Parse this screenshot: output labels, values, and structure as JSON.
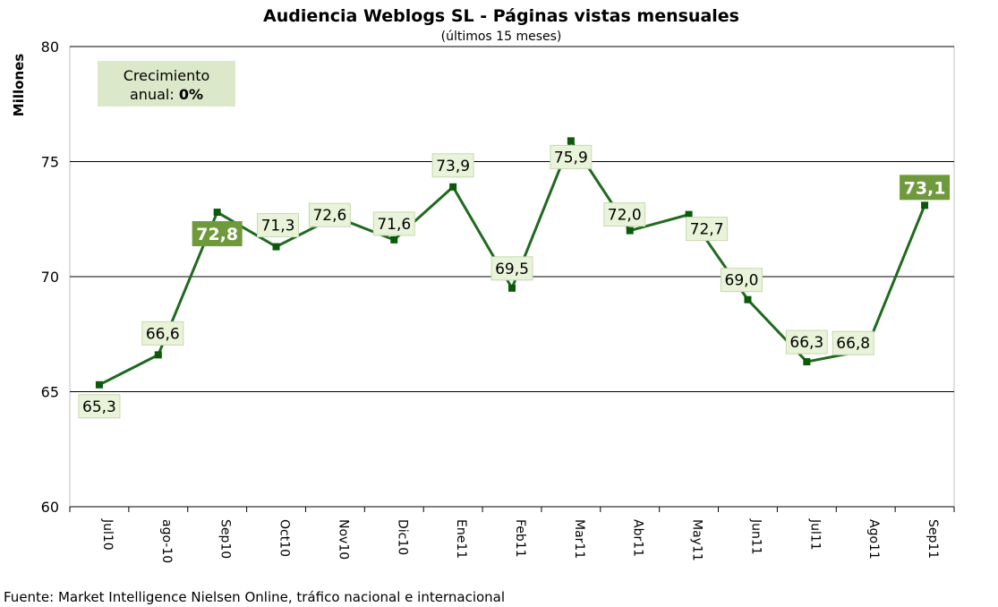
{
  "colors": {
    "line": "#1f6a1f",
    "marker": "#0b5a0b",
    "label_bg": "#e9f3d9",
    "label_border": "#c8d8b0",
    "highlight_bg": "#6e9a3c",
    "growth_bg": "#dbe8c9",
    "grid": "#000000"
  },
  "chart_data": {
    "type": "line",
    "title": "Audiencia Weblogs SL - Páginas vistas mensuales",
    "subtitle": "(últimos 15 meses)",
    "ylabel": "Millones",
    "xlabel": "",
    "ylim": [
      60,
      80
    ],
    "yticks": [
      60,
      65,
      70,
      75,
      80
    ],
    "grid": "horizontal",
    "categories": [
      "Jul10",
      "ago-10",
      "Sep10",
      "Oct10",
      "Nov10",
      "Dic10",
      "Ene11",
      "Feb11",
      "Mar11",
      "Abr11",
      "May11",
      "Jun11",
      "Jul11",
      "Ago11",
      "Sep11"
    ],
    "values": [
      65.3,
      66.6,
      72.8,
      71.3,
      72.6,
      71.6,
      73.9,
      69.5,
      75.9,
      72.0,
      72.7,
      69.0,
      66.3,
      66.8,
      73.1
    ],
    "data_labels": [
      "65,3",
      "66,6",
      "72,8",
      "71,3",
      "72,6",
      "71,6",
      "73,9",
      "69,5",
      "75,9",
      "72,0",
      "72,7",
      "69,0",
      "66,3",
      "66,8",
      "73,1"
    ],
    "highlighted": [
      "Sep10",
      "Sep11"
    ],
    "annotation": {
      "line1": "Crecimiento",
      "line2_prefix": "anual: ",
      "line2_value": "0%"
    }
  },
  "source": "Fuente: Market Intelligence Nielsen Online, tráfico nacional e internacional"
}
